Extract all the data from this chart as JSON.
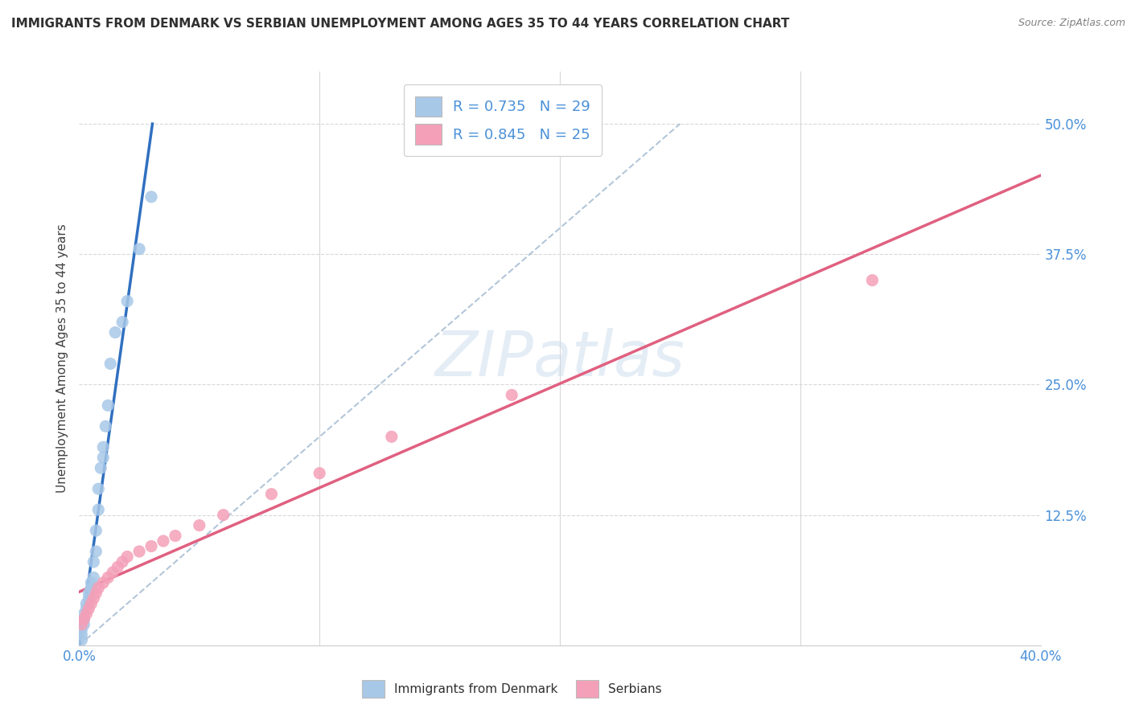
{
  "title": "IMMIGRANTS FROM DENMARK VS SERBIAN UNEMPLOYMENT AMONG AGES 35 TO 44 YEARS CORRELATION CHART",
  "source_text": "Source: ZipAtlas.com",
  "ylabel": "Unemployment Among Ages 35 to 44 years",
  "xlim": [
    0.0,
    0.4
  ],
  "ylim": [
    0.0,
    0.55
  ],
  "xticks": [
    0.0,
    0.1,
    0.2,
    0.3,
    0.4
  ],
  "xticklabels": [
    "0.0%",
    "",
    "",
    "",
    "40.0%"
  ],
  "yticks": [
    0.0,
    0.125,
    0.25,
    0.375,
    0.5
  ],
  "yticklabels": [
    "",
    "12.5%",
    "25.0%",
    "37.5%",
    "50.0%"
  ],
  "denmark_R": 0.735,
  "denmark_N": 29,
  "serbian_R": 0.845,
  "serbian_N": 25,
  "denmark_color": "#a8c8e8",
  "serbian_color": "#f4a0b8",
  "denmark_line_color": "#3070c0",
  "serbian_line_color": "#e06080",
  "trendline_dashed_color": "#a0b8d0",
  "watermark_text": "ZIPatlas",
  "background_color": "#ffffff",
  "denmark_scatter_x": [
    0.001,
    0.001,
    0.001,
    0.002,
    0.002,
    0.002,
    0.003,
    0.003,
    0.004,
    0.004,
    0.005,
    0.005,
    0.006,
    0.006,
    0.007,
    0.007,
    0.008,
    0.008,
    0.009,
    0.01,
    0.01,
    0.011,
    0.012,
    0.013,
    0.015,
    0.018,
    0.02,
    0.025,
    0.03
  ],
  "denmark_scatter_y": [
    0.005,
    0.01,
    0.015,
    0.02,
    0.025,
    0.03,
    0.035,
    0.04,
    0.045,
    0.05,
    0.055,
    0.06,
    0.065,
    0.08,
    0.09,
    0.11,
    0.13,
    0.15,
    0.17,
    0.18,
    0.19,
    0.21,
    0.23,
    0.27,
    0.3,
    0.31,
    0.33,
    0.38,
    0.43
  ],
  "serbian_scatter_x": [
    0.001,
    0.002,
    0.003,
    0.004,
    0.005,
    0.006,
    0.007,
    0.008,
    0.01,
    0.012,
    0.014,
    0.016,
    0.018,
    0.02,
    0.025,
    0.03,
    0.035,
    0.04,
    0.05,
    0.06,
    0.08,
    0.1,
    0.13,
    0.18,
    0.33
  ],
  "serbian_scatter_y": [
    0.02,
    0.025,
    0.03,
    0.035,
    0.04,
    0.045,
    0.05,
    0.055,
    0.06,
    0.065,
    0.07,
    0.075,
    0.08,
    0.085,
    0.09,
    0.095,
    0.1,
    0.105,
    0.115,
    0.125,
    0.145,
    0.165,
    0.2,
    0.24,
    0.35
  ],
  "grid_color": "#d8d8d8",
  "title_color": "#303030",
  "source_color": "#808080",
  "tick_label_color": "#4a90d9",
  "legend_label_color": "#4a90d9"
}
